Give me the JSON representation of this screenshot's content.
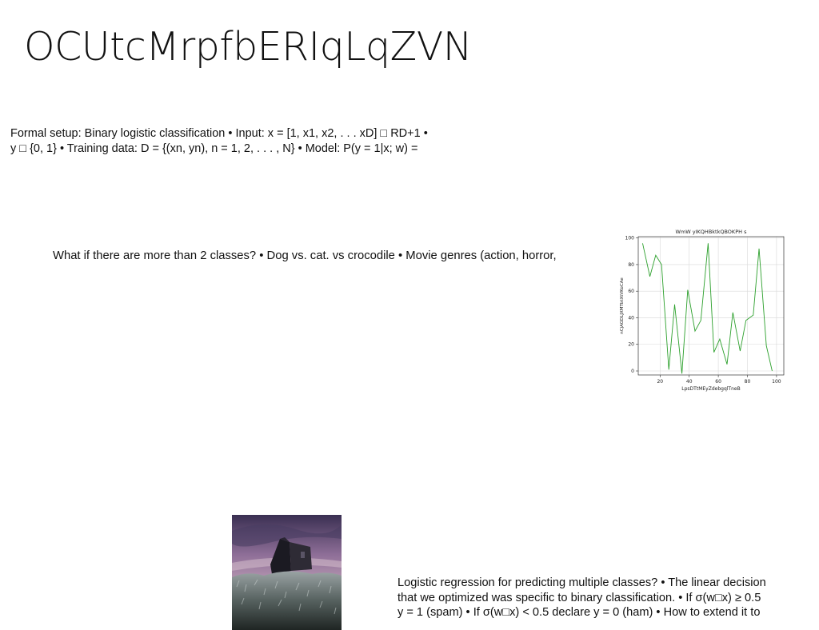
{
  "slide": {
    "title": "OCUtcMrpfbERIqLqZVN",
    "formal_setup_lines": [
      "Formal setup: Binary logistic classification • Input: x = [1, x1, x2, . . . xD] □ RD+1 •",
      "y □ {0, 1} • Training data: D = {(xn, yn), n = 1, 2, . . . , N} • Model: P(y = 1|x; w) ="
    ],
    "question_text": "What if there are more than 2 classes? • Dog vs. cat. vs crocodile • Movie genres (action, horror,",
    "multiclass_lines": [
      "Logistic regression for predicting multiple classes? • The linear decision",
      "that we optimized was specific to binary classification. • If σ(w□x) ≥ 0.5",
      "y = 1 (spam) • If σ(w□x) < 0.5 declare y = 0 (ham) • How to extend it to"
    ]
  },
  "chart_data": {
    "type": "line",
    "title": "WmW yIKQHBktkQBOKPH s",
    "xlabel": "LpsDTtMEyZdebgqlTneB",
    "ylabel": "nCjAGDLJXMTbtXtVKoCAe",
    "xlim": [
      5,
      105
    ],
    "ylim": [
      -3,
      101
    ],
    "xticks": [
      20,
      40,
      60,
      80,
      100
    ],
    "yticks": [
      0,
      20,
      40,
      60,
      80,
      100
    ],
    "grid": true,
    "series": [
      {
        "color": "#2ca02c",
        "x": [
          8,
          13,
          17,
          21,
          26,
          30,
          35,
          39,
          44,
          48,
          53,
          57,
          61,
          66,
          70,
          75,
          79,
          84,
          88,
          93,
          97
        ],
        "y": [
          96,
          71,
          87,
          80,
          1,
          50,
          -2,
          61,
          30,
          38,
          96,
          14,
          24,
          5,
          44,
          15,
          38,
          42,
          92,
          19,
          0
        ]
      }
    ]
  }
}
